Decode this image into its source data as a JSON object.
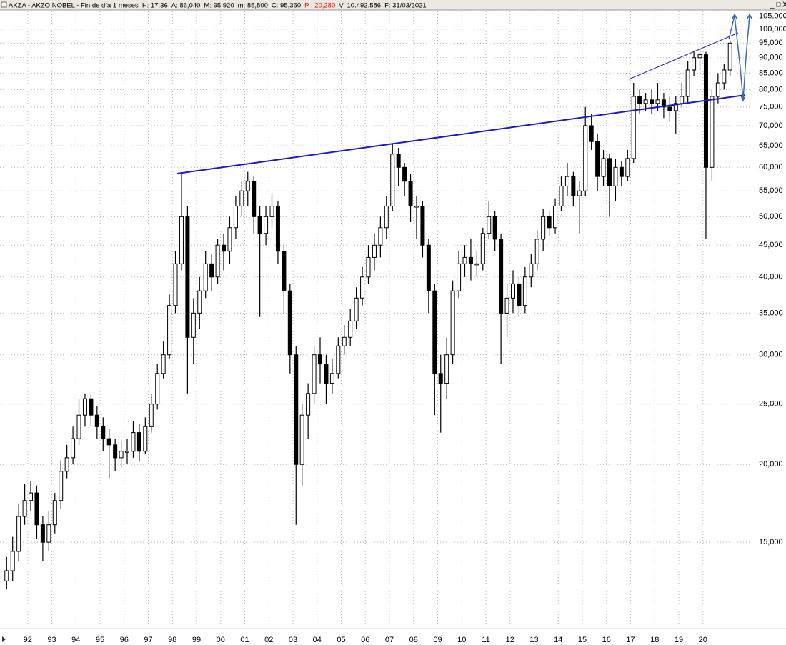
{
  "chart_data": {
    "type": "candlestick",
    "title": "AKZA - AKZO NOBEL - Fin de día 1 meses",
    "info": [
      {
        "text": "H: 17:36"
      },
      {
        "text": "A: 86,040"
      },
      {
        "text": "M: 95,920"
      },
      {
        "text": "m: 85,800"
      },
      {
        "text": "C: 95,360"
      },
      {
        "text": "P : 20,280",
        "color": "#ff0000"
      },
      {
        "text": "V: 10.492.586"
      },
      {
        "text": "F: 31/03/2021"
      }
    ],
    "log_scale": true,
    "grid": true,
    "color": "#000000",
    "x": [
      1991.125,
      1991.375,
      1991.625,
      1991.875,
      1992.125,
      1992.375,
      1992.625,
      1992.875,
      1993.125,
      1993.375,
      1993.625,
      1993.875,
      1994.125,
      1994.375,
      1994.625,
      1994.875,
      1995.125,
      1995.375,
      1995.625,
      1995.875,
      1996.125,
      1996.375,
      1996.625,
      1996.875,
      1997.125,
      1997.375,
      1997.625,
      1997.875,
      1998.125,
      1998.375,
      1998.625,
      1998.875,
      1999.125,
      1999.375,
      1999.625,
      1999.875,
      2000.125,
      2000.375,
      2000.625,
      2000.875,
      2001.125,
      2001.375,
      2001.625,
      2001.875,
      2002.125,
      2002.375,
      2002.625,
      2002.875,
      2003.125,
      2003.375,
      2003.625,
      2003.875,
      2004.125,
      2004.375,
      2004.625,
      2004.875,
      2005.125,
      2005.375,
      2005.625,
      2005.875,
      2006.125,
      2006.375,
      2006.625,
      2006.875,
      2007.125,
      2007.375,
      2007.625,
      2007.875,
      2008.125,
      2008.375,
      2008.625,
      2008.875,
      2009.125,
      2009.375,
      2009.625,
      2009.875,
      2010.125,
      2010.375,
      2010.625,
      2010.875,
      2011.125,
      2011.375,
      2011.625,
      2011.875,
      2012.125,
      2012.375,
      2012.625,
      2012.875,
      2013.125,
      2013.375,
      2013.625,
      2013.875,
      2014.125,
      2014.375,
      2014.625,
      2014.875,
      2015.125,
      2015.375,
      2015.625,
      2015.875,
      2016.125,
      2016.375,
      2016.625,
      2016.875,
      2017.125,
      2017.375,
      2017.625,
      2017.875,
      2018.125,
      2018.375,
      2018.625,
      2018.875,
      2019.125,
      2019.375,
      2019.625,
      2019.875,
      2020.125,
      2020.375,
      2020.625,
      2020.875,
      2021.125
    ],
    "open": [
      13,
      13.5,
      14.5,
      16.5,
      17.5,
      18,
      16,
      15,
      16,
      17.5,
      19.5,
      20.5,
      22,
      24,
      25.5,
      24,
      23,
      22,
      21.5,
      20.5,
      21,
      21,
      22.5,
      21,
      23,
      25,
      28,
      30,
      36,
      42,
      50,
      32,
      35,
      38,
      42,
      40,
      45,
      44,
      48,
      52,
      55,
      57,
      50,
      47,
      50,
      52,
      44,
      38,
      30,
      20,
      24,
      26,
      30,
      29,
      27,
      28,
      31,
      32,
      34,
      37,
      40,
      43,
      45,
      48,
      52,
      63,
      60,
      57,
      52,
      52,
      45,
      38,
      28,
      27,
      30,
      38,
      42,
      43,
      42,
      42,
      47,
      50,
      46,
      35,
      37,
      39,
      36,
      40,
      42,
      46,
      50,
      48,
      52,
      56,
      58,
      54,
      55,
      70,
      66,
      58,
      62,
      56,
      60,
      58,
      62,
      78,
      76,
      77,
      76,
      77,
      75,
      74,
      76,
      78,
      86,
      90,
      91,
      60,
      78,
      82,
      86
    ],
    "high": [
      14.2,
      15.3,
      17.3,
      18.6,
      18.8,
      18.5,
      16.5,
      16.8,
      18,
      20.3,
      21.5,
      23,
      25.5,
      26,
      26,
      24.8,
      23.8,
      22.8,
      22,
      21.8,
      22,
      23.5,
      23.2,
      23.8,
      26,
      29,
      31.5,
      37.5,
      44,
      58.5,
      52,
      37,
      40,
      44,
      43.5,
      46,
      47,
      50,
      54,
      57,
      59,
      58,
      52,
      52,
      54.5,
      53,
      45,
      39,
      31,
      25,
      27,
      31,
      32,
      30,
      29.5,
      32,
      33.5,
      35.5,
      38.5,
      41.5,
      45,
      47,
      50,
      54,
      65.5,
      64.5,
      61,
      58.5,
      54,
      53,
      46,
      39,
      30,
      32,
      39.5,
      44,
      45,
      46,
      44,
      48,
      53,
      51,
      47,
      39,
      41,
      40,
      41.5,
      43.5,
      47.5,
      51.5,
      51,
      53.5,
      58,
      61,
      59,
      57,
      75,
      73,
      68,
      64,
      63,
      62,
      61.5,
      64,
      82,
      80,
      79,
      80,
      82,
      79,
      78,
      78,
      82,
      89,
      92,
      93,
      92,
      80,
      85,
      88,
      96
    ],
    "low": [
      12.6,
      13,
      14,
      16,
      16.8,
      15.2,
      14,
      14.5,
      15.5,
      17,
      19,
      20,
      21.5,
      23,
      23,
      22,
      21,
      19,
      19.5,
      19.8,
      20,
      20.5,
      20.2,
      20.8,
      22.5,
      24.5,
      27.5,
      29.5,
      35,
      41,
      26,
      29,
      33,
      37,
      38,
      39,
      41,
      42,
      46,
      50,
      52,
      47,
      34.5,
      45,
      48,
      42,
      35,
      28,
      16,
      18.5,
      22,
      25,
      27,
      25,
      26,
      27.5,
      30,
      31,
      33,
      36,
      39,
      41,
      43,
      46,
      51,
      56,
      54,
      49,
      46,
      43,
      35,
      24,
      22.5,
      25.5,
      29,
      37,
      40,
      39.5,
      40,
      41,
      46,
      44,
      29,
      32,
      35,
      34.5,
      35,
      38.5,
      41,
      44,
      46.5,
      47,
      51,
      54,
      52,
      47,
      54,
      64,
      55,
      56,
      50,
      53,
      56,
      57,
      61,
      73,
      74,
      73,
      74,
      72,
      71,
      68,
      75,
      76,
      84,
      86,
      46,
      57,
      76,
      80,
      84
    ],
    "close": [
      13.5,
      14.5,
      16.5,
      17.5,
      18,
      16,
      15,
      16,
      17.5,
      19.5,
      20.5,
      22,
      24,
      25.5,
      24,
      23,
      22,
      21.5,
      20.5,
      21,
      21,
      22.5,
      21,
      23,
      25,
      28,
      30,
      36,
      42,
      50,
      32,
      35,
      38,
      42,
      40,
      45,
      44,
      48,
      52,
      55,
      57,
      50,
      47,
      50,
      52,
      44,
      38,
      30,
      20,
      24,
      26,
      30,
      29,
      27,
      28,
      31,
      32,
      34,
      37,
      40,
      43,
      45,
      48,
      52,
      63,
      60,
      57,
      52,
      52,
      45,
      38,
      28,
      27,
      30,
      38,
      42,
      43,
      42,
      42,
      47,
      50,
      46,
      35,
      37,
      39,
      36,
      40,
      42,
      46,
      50,
      48,
      52,
      56,
      58,
      54,
      55,
      70,
      66,
      58,
      62,
      56,
      60,
      58,
      62,
      78,
      76,
      77,
      76,
      77,
      75,
      74,
      76,
      78,
      86,
      90,
      91,
      60,
      78,
      82,
      86,
      95
    ],
    "xlim": [
      1990.85,
      2022.2
    ],
    "xticks": [
      {
        "value": 1992,
        "label": "92"
      },
      {
        "value": 1993,
        "label": "93"
      },
      {
        "value": 1994,
        "label": "94"
      },
      {
        "value": 1995,
        "label": "95"
      },
      {
        "value": 1996,
        "label": "96"
      },
      {
        "value": 1997,
        "label": "97"
      },
      {
        "value": 1998,
        "label": "98"
      },
      {
        "value": 1999,
        "label": "99"
      },
      {
        "value": 2000,
        "label": "00"
      },
      {
        "value": 2001,
        "label": "01"
      },
      {
        "value": 2002,
        "label": "02"
      },
      {
        "value": 2003,
        "label": "03"
      },
      {
        "value": 2004,
        "label": "04"
      },
      {
        "value": 2005,
        "label": "05"
      },
      {
        "value": 2006,
        "label": "06"
      },
      {
        "value": 2007,
        "label": "07"
      },
      {
        "value": 2008,
        "label": "08"
      },
      {
        "value": 2009,
        "label": "09"
      },
      {
        "value": 2010,
        "label": "10"
      },
      {
        "value": 2011,
        "label": "11"
      },
      {
        "value": 2012,
        "label": "12"
      },
      {
        "value": 2013,
        "label": "13"
      },
      {
        "value": 2014,
        "label": "14"
      },
      {
        "value": 2015,
        "label": "15"
      },
      {
        "value": 2016,
        "label": "16"
      },
      {
        "value": 2017,
        "label": "17"
      },
      {
        "value": 2018,
        "label": "18"
      },
      {
        "value": 2019,
        "label": "19"
      },
      {
        "value": 2020,
        "label": "20"
      }
    ],
    "ylim": [
      10.9,
      106.8
    ],
    "yticks": [
      {
        "value": 15,
        "label": "15,000"
      },
      {
        "value": 20,
        "label": "20,000"
      },
      {
        "value": 25,
        "label": "25,000"
      },
      {
        "value": 30,
        "label": "30,000"
      },
      {
        "value": 35,
        "label": "35,000"
      },
      {
        "value": 40,
        "label": "40,000"
      },
      {
        "value": 45,
        "label": "45,000"
      },
      {
        "value": 50,
        "label": "50,000"
      },
      {
        "value": 55,
        "label": "55,000"
      },
      {
        "value": 60,
        "label": "60,000"
      },
      {
        "value": 65,
        "label": "65,000"
      },
      {
        "value": 70,
        "label": "70,000"
      },
      {
        "value": 75,
        "label": "75,000"
      },
      {
        "value": 80,
        "label": "80,000"
      },
      {
        "value": 85,
        "label": "85,000"
      },
      {
        "value": 90,
        "label": "90,000"
      },
      {
        "value": 95,
        "label": "95,000"
      },
      {
        "value": 100,
        "label": "100,000"
      },
      {
        "value": 105,
        "label": "105,000"
      }
    ]
  }
}
